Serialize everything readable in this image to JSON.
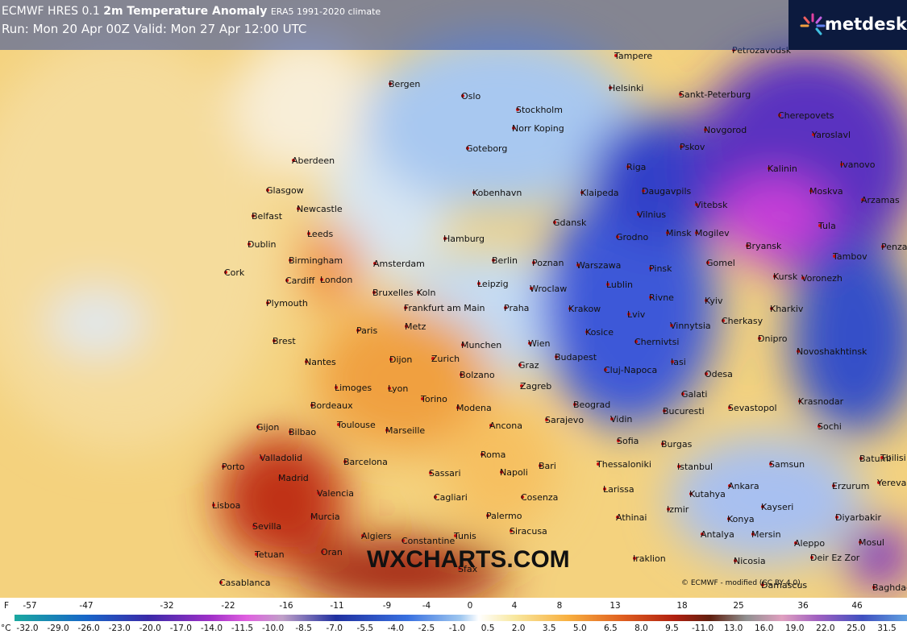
{
  "header": {
    "model": "ECMWF HRES 0.1",
    "title": "2m Temperature Anomaly",
    "climate": "ERA5 1991-2020 climate",
    "run": "Run: Mon 20 Apr 00Z Valid: Mon 27 Apr 12:00 UTC"
  },
  "logo": "metdesk",
  "watermark": "WXCHARTS.COM",
  "credit": "© ECMWF - modified (CC BY 4.0)",
  "cities": [
    "Tampere",
    "Petrozavodsk",
    "Bergen",
    "Oslo",
    "Helsinki",
    "Sankt-Peterburg",
    "Stockholm",
    "Norr Koping",
    "Cherepovets",
    "Novgorod",
    "Goteborg",
    "Pskov",
    "Yaroslavl",
    "Aberdeen",
    "Riga",
    "Kalinin",
    "Ivanovo",
    "Glasgow",
    "Kobenhavn",
    "Klaipeda",
    "Daugavpils",
    "Moskva",
    "Arzamas",
    "Newcastle",
    "Belfast",
    "Vitebsk",
    "Vilnius",
    "Dublin",
    "Leeds",
    "Hamburg",
    "Gdansk",
    "Grodno",
    "Minsk",
    "Mogilev",
    "Tula",
    "Bryansk",
    "Birmingham",
    "Amsterdam",
    "Berlin",
    "Poznan",
    "Warszawa",
    "Pinsk",
    "Gomel",
    "Tambov",
    "Penza",
    "Cork",
    "Cardiff",
    "London",
    "Kursk",
    "Voronezh",
    "Lublin",
    "Bruxelles",
    "Koln",
    "Leipzig",
    "Wroclaw",
    "Plymouth",
    "Frankfurt am Main",
    "Praha",
    "Krakow",
    "Rivne",
    "Kyiv",
    "Kharkiv",
    "Lviv",
    "Paris",
    "Metz",
    "Vinnytsia",
    "Cherkasy",
    "Brest",
    "Kosice",
    "Munchen",
    "Wien",
    "Chernivtsi",
    "Dnipro",
    "Nantes",
    "Dijon",
    "Zurich",
    "Budapest",
    "Novoshakhtinsk",
    "Graz",
    "Iasi",
    "Cluj-Napoca",
    "Bolzano",
    "Odesa",
    "Limoges",
    "Lyon",
    "Zagreb",
    "Torino",
    "Galati",
    "Krasnodar",
    "Bordeaux",
    "Beograd",
    "Modena",
    "Bucuresti",
    "Sevastopol",
    "Toulouse",
    "Marseille",
    "Ancona",
    "Sarajevo",
    "Vidin",
    "Sochi",
    "Gijon",
    "Bilbao",
    "Sofia",
    "Burgas",
    "Valladolid",
    "Barcelona",
    "Roma",
    "Bari",
    "Istanbul",
    "Samsun",
    "Batumi",
    "Tbilisi",
    "Porto",
    "Madrid",
    "Napoli",
    "Thessaloniki",
    "Sassari",
    "Erzurum",
    "Yerevan",
    "Valencia",
    "Larissa",
    "Ankara",
    "Kutahya",
    "Kayseri",
    "Lisboa",
    "Cagliari",
    "Cosenza",
    "Izmir",
    "Konya",
    "Diyarbakir",
    "Murcia",
    "Sevilla",
    "Athinai",
    "Palermo",
    "Siracusa",
    "Antalya",
    "Mersin",
    "Aleppo",
    "Mosul",
    "Algiers",
    "Tunis",
    "Constantine",
    "Tetuan",
    "Oran",
    "Iraklion",
    "Nicosia",
    "Deir Ez Zor",
    "Sfax",
    "Casablanca",
    "Damascus",
    "Baghdad"
  ],
  "legend": {
    "f_unit": "F",
    "f_labels": [
      "-57",
      "-47",
      "-32",
      "-22",
      "-16",
      "-11",
      "-9",
      "-4",
      "0",
      "4",
      "8",
      "13",
      "18",
      "25",
      "36",
      "46"
    ],
    "c_unit": "°C",
    "c_labels": [
      "-32.0",
      "-29.0",
      "-26.0",
      "-23.0",
      "-20.0",
      "-17.0",
      "-14.0",
      "-11.5",
      "-10.0",
      "-8.5",
      "-7.0",
      "-5.5",
      "-4.0",
      "-2.5",
      "-1.0",
      "0.5",
      "2.0",
      "3.5",
      "5.0",
      "6.5",
      "8.0",
      "9.5",
      "-11.0",
      "13.0",
      "16.0",
      "19.0",
      "22.0",
      "25.0",
      "31.5"
    ]
  }
}
